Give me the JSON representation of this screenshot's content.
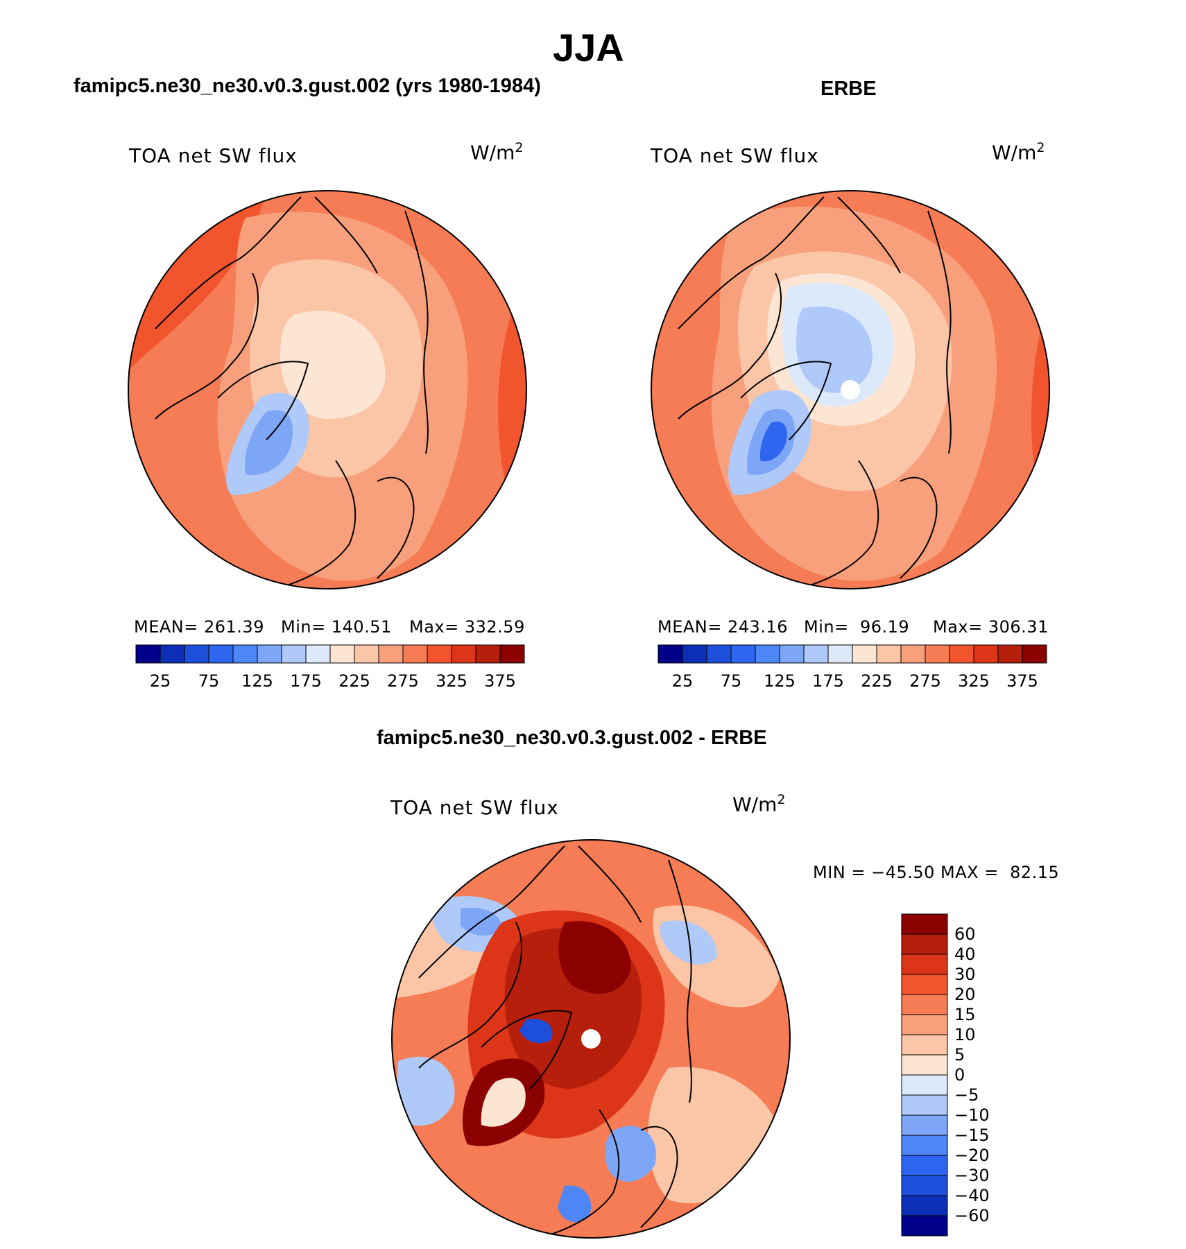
{
  "figure": {
    "title": "JJA"
  },
  "chart_data": [
    {
      "type": "heatmap",
      "projection": "north-polar-stereographic",
      "title": "famipc5.ne30_ne30.v0.3.gust.002 (yrs 1980-1984)",
      "variable": "TOA net SW flux",
      "units": "W/m",
      "units_exp": "2",
      "stats": {
        "mean": "MEAN= 261.39",
        "min": "Min= 140.51",
        "max": "Max= 332.59"
      },
      "colorbar": {
        "orientation": "horizontal",
        "levels": [
          25,
          50,
          75,
          100,
          125,
          150,
          175,
          200,
          225,
          250,
          275,
          300,
          325,
          350,
          375
        ],
        "tick_labels": [
          "25",
          "75",
          "125",
          "175",
          "225",
          "275",
          "325",
          "375"
        ],
        "colors": [
          "#00008b",
          "#0c2fb5",
          "#1e4fdb",
          "#2f66f0",
          "#4f86f5",
          "#7ea6f7",
          "#afc9f8",
          "#dbe9fb",
          "#fde5d3",
          "#fbc5a8",
          "#f8a07c",
          "#f57c55",
          "#f2542e",
          "#dc3518",
          "#b51f0c",
          "#8b0000"
        ]
      }
    },
    {
      "type": "heatmap",
      "projection": "north-polar-stereographic",
      "title": "ERBE",
      "variable": "TOA net SW flux",
      "units": "W/m",
      "units_exp": "2",
      "stats": {
        "mean": "MEAN= 243.16",
        "min": "Min=  96.19",
        "max": "Max= 306.31"
      },
      "colorbar": {
        "orientation": "horizontal",
        "levels": [
          25,
          50,
          75,
          100,
          125,
          150,
          175,
          200,
          225,
          250,
          275,
          300,
          325,
          350,
          375
        ],
        "tick_labels": [
          "25",
          "75",
          "125",
          "175",
          "225",
          "275",
          "325",
          "375"
        ],
        "colors": [
          "#00008b",
          "#0c2fb5",
          "#1e4fdb",
          "#2f66f0",
          "#4f86f5",
          "#7ea6f7",
          "#afc9f8",
          "#dbe9fb",
          "#fde5d3",
          "#fbc5a8",
          "#f8a07c",
          "#f57c55",
          "#f2542e",
          "#dc3518",
          "#b51f0c",
          "#8b0000"
        ]
      }
    },
    {
      "type": "heatmap",
      "projection": "north-polar-stereographic",
      "title": "famipc5.ne30_ne30.v0.3.gust.002 - ERBE",
      "variable": "TOA net SW flux",
      "units": "W/m",
      "units_exp": "2",
      "stats": {
        "minmax": "MIN = −45.50 MAX =  82.15"
      },
      "colorbar": {
        "orientation": "vertical",
        "levels": [
          60,
          40,
          30,
          20,
          15,
          10,
          5,
          0,
          -5,
          -10,
          -15,
          -20,
          -30,
          -40,
          -60
        ],
        "tick_labels": [
          "60",
          "40",
          "30",
          "20",
          "15",
          "10",
          "5",
          "0",
          "−5",
          "−10",
          "−15",
          "−20",
          "−30",
          "−40",
          "−60"
        ],
        "colors": [
          "#8b0000",
          "#b51f0c",
          "#dc3518",
          "#f2542e",
          "#f57c55",
          "#f8a07c",
          "#fbc5a8",
          "#fde5d3",
          "#dbe9fb",
          "#afc9f8",
          "#7ea6f7",
          "#4f86f5",
          "#2f66f0",
          "#1e4fdb",
          "#0c2fb5",
          "#00008b"
        ]
      }
    }
  ]
}
